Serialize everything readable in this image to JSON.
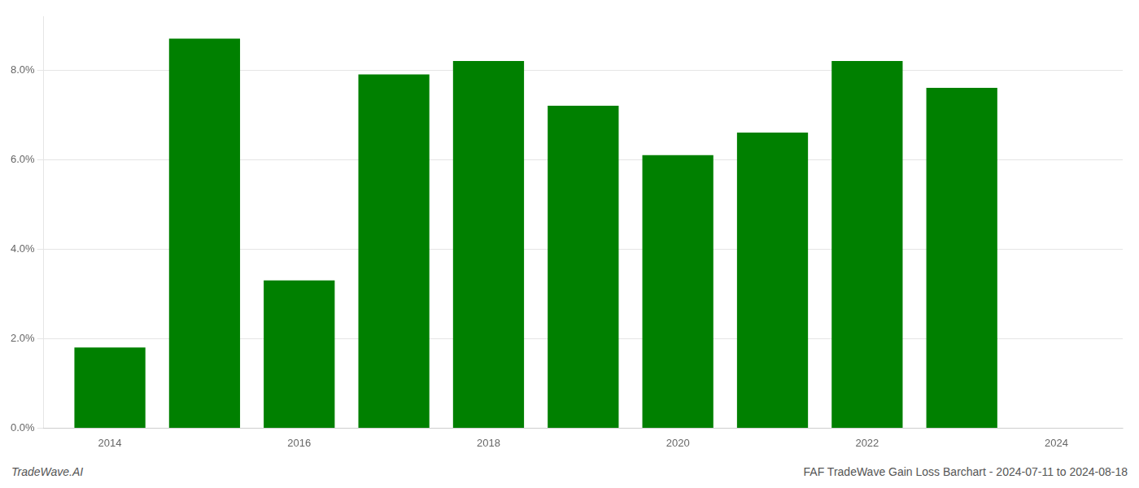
{
  "chart_data": {
    "type": "bar",
    "x": [
      2014,
      2015,
      2016,
      2017,
      2018,
      2019,
      2020,
      2021,
      2022,
      2023
    ],
    "values": [
      0.018,
      0.087,
      0.033,
      0.079,
      0.082,
      0.072,
      0.061,
      0.066,
      0.082,
      0.076
    ],
    "color": "#008000",
    "xlim": [
      2013.3,
      2024.7
    ],
    "xticks": [
      2014,
      2016,
      2018,
      2020,
      2022,
      2024
    ],
    "ylim": [
      0,
      0.092
    ],
    "yticks": [
      {
        "value": 0.0,
        "label": "0.0%"
      },
      {
        "value": 0.02,
        "label": "2.0%"
      },
      {
        "value": 0.04,
        "label": "4.0%"
      },
      {
        "value": 0.06,
        "label": "6.0%"
      },
      {
        "value": 0.08,
        "label": "8.0%"
      }
    ],
    "grid": "y",
    "annotations": [
      "TradeWave.AI",
      "FAF TradeWave Gain Loss Barchart - 2024-07-11 to 2024-08-18"
    ]
  }
}
